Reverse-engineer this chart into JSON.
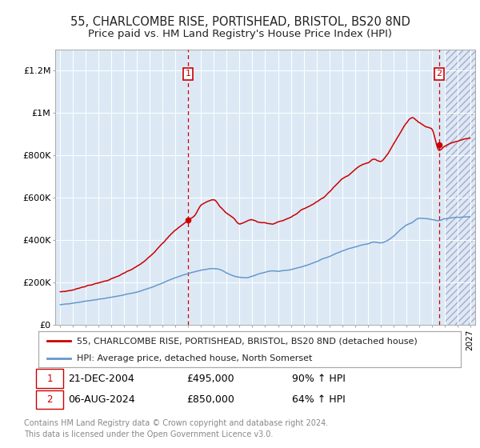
{
  "title": "55, CHARLCOMBE RISE, PORTISHEAD, BRISTOL, BS20 8ND",
  "subtitle": "Price paid vs. HM Land Registry's House Price Index (HPI)",
  "title_fontsize": 10.5,
  "subtitle_fontsize": 9.5,
  "background_color": "#ffffff",
  "plot_bg_color": "#dce9f5",
  "grid_color": "#ffffff",
  "ylabel": "",
  "xlabel": "",
  "ylim": [
    0,
    1300000
  ],
  "xlim_start": 1994.6,
  "xlim_end": 2027.4,
  "red_line_color": "#cc0000",
  "blue_line_color": "#6699cc",
  "marker_color": "#cc0000",
  "sale1_x": 2004.97,
  "sale1_y": 495000,
  "sale2_x": 2024.59,
  "sale2_y": 850000,
  "hatch_start": 2025.0,
  "legend_item1": "55, CHARLCOMBE RISE, PORTISHEAD, BRISTOL, BS20 8ND (detached house)",
  "legend_item2": "HPI: Average price, detached house, North Somerset",
  "ann1_date": "21-DEC-2004",
  "ann1_price": "£495,000",
  "ann1_hpi": "90% ↑ HPI",
  "ann2_date": "06-AUG-2024",
  "ann2_price": "£850,000",
  "ann2_hpi": "64% ↑ HPI",
  "footer_line1": "Contains HM Land Registry data © Crown copyright and database right 2024.",
  "footer_line2": "This data is licensed under the Open Government Licence v3.0.",
  "ytick_labels": [
    "£0",
    "£200K",
    "£400K",
    "£600K",
    "£800K",
    "£1M",
    "£1.2M"
  ],
  "ytick_values": [
    0,
    200000,
    400000,
    600000,
    800000,
    1000000,
    1200000
  ],
  "red_key_years": [
    1995.0,
    1996.0,
    1997.0,
    1998.0,
    1999.0,
    2000.0,
    2001.0,
    2002.0,
    2003.0,
    2004.0,
    2004.97,
    2005.5,
    2006.0,
    2007.0,
    2007.5,
    2008.0,
    2008.5,
    2009.0,
    2009.5,
    2010.0,
    2010.5,
    2011.0,
    2011.5,
    2012.0,
    2012.5,
    2013.0,
    2013.5,
    2014.0,
    2014.5,
    2015.0,
    2015.5,
    2016.0,
    2016.5,
    2017.0,
    2017.5,
    2018.0,
    2018.5,
    2019.0,
    2019.5,
    2020.0,
    2020.5,
    2021.0,
    2021.5,
    2022.0,
    2022.5,
    2023.0,
    2023.5,
    2024.0,
    2024.59,
    2025.0,
    2026.0,
    2027.0
  ],
  "red_key_vals": [
    155000,
    165000,
    185000,
    200000,
    220000,
    245000,
    275000,
    320000,
    390000,
    450000,
    495000,
    520000,
    570000,
    595000,
    560000,
    530000,
    510000,
    480000,
    490000,
    500000,
    490000,
    485000,
    480000,
    490000,
    500000,
    515000,
    535000,
    555000,
    570000,
    590000,
    610000,
    640000,
    670000,
    700000,
    720000,
    750000,
    770000,
    780000,
    800000,
    790000,
    820000,
    870000,
    920000,
    970000,
    1000000,
    980000,
    960000,
    950000,
    850000,
    870000,
    890000,
    900000
  ],
  "blue_key_years": [
    1995.0,
    1996.0,
    1997.0,
    1998.0,
    1999.0,
    2000.0,
    2001.0,
    2002.0,
    2003.0,
    2004.0,
    2005.0,
    2006.0,
    2007.0,
    2007.5,
    2008.0,
    2008.5,
    2009.0,
    2009.5,
    2010.0,
    2010.5,
    2011.0,
    2011.5,
    2012.0,
    2012.5,
    2013.0,
    2013.5,
    2014.0,
    2014.5,
    2015.0,
    2015.5,
    2016.0,
    2016.5,
    2017.0,
    2017.5,
    2018.0,
    2018.5,
    2019.0,
    2019.5,
    2020.0,
    2020.5,
    2021.0,
    2021.5,
    2022.0,
    2022.5,
    2023.0,
    2023.5,
    2024.0,
    2024.59,
    2025.0,
    2026.0,
    2027.0
  ],
  "blue_key_vals": [
    95000,
    100000,
    110000,
    118000,
    128000,
    140000,
    155000,
    175000,
    200000,
    225000,
    245000,
    260000,
    270000,
    265000,
    250000,
    238000,
    230000,
    228000,
    235000,
    245000,
    252000,
    258000,
    255000,
    258000,
    262000,
    270000,
    278000,
    288000,
    300000,
    315000,
    325000,
    338000,
    350000,
    360000,
    368000,
    378000,
    385000,
    395000,
    390000,
    400000,
    420000,
    450000,
    475000,
    490000,
    510000,
    510000,
    505000,
    500000,
    510000,
    515000,
    518000
  ]
}
